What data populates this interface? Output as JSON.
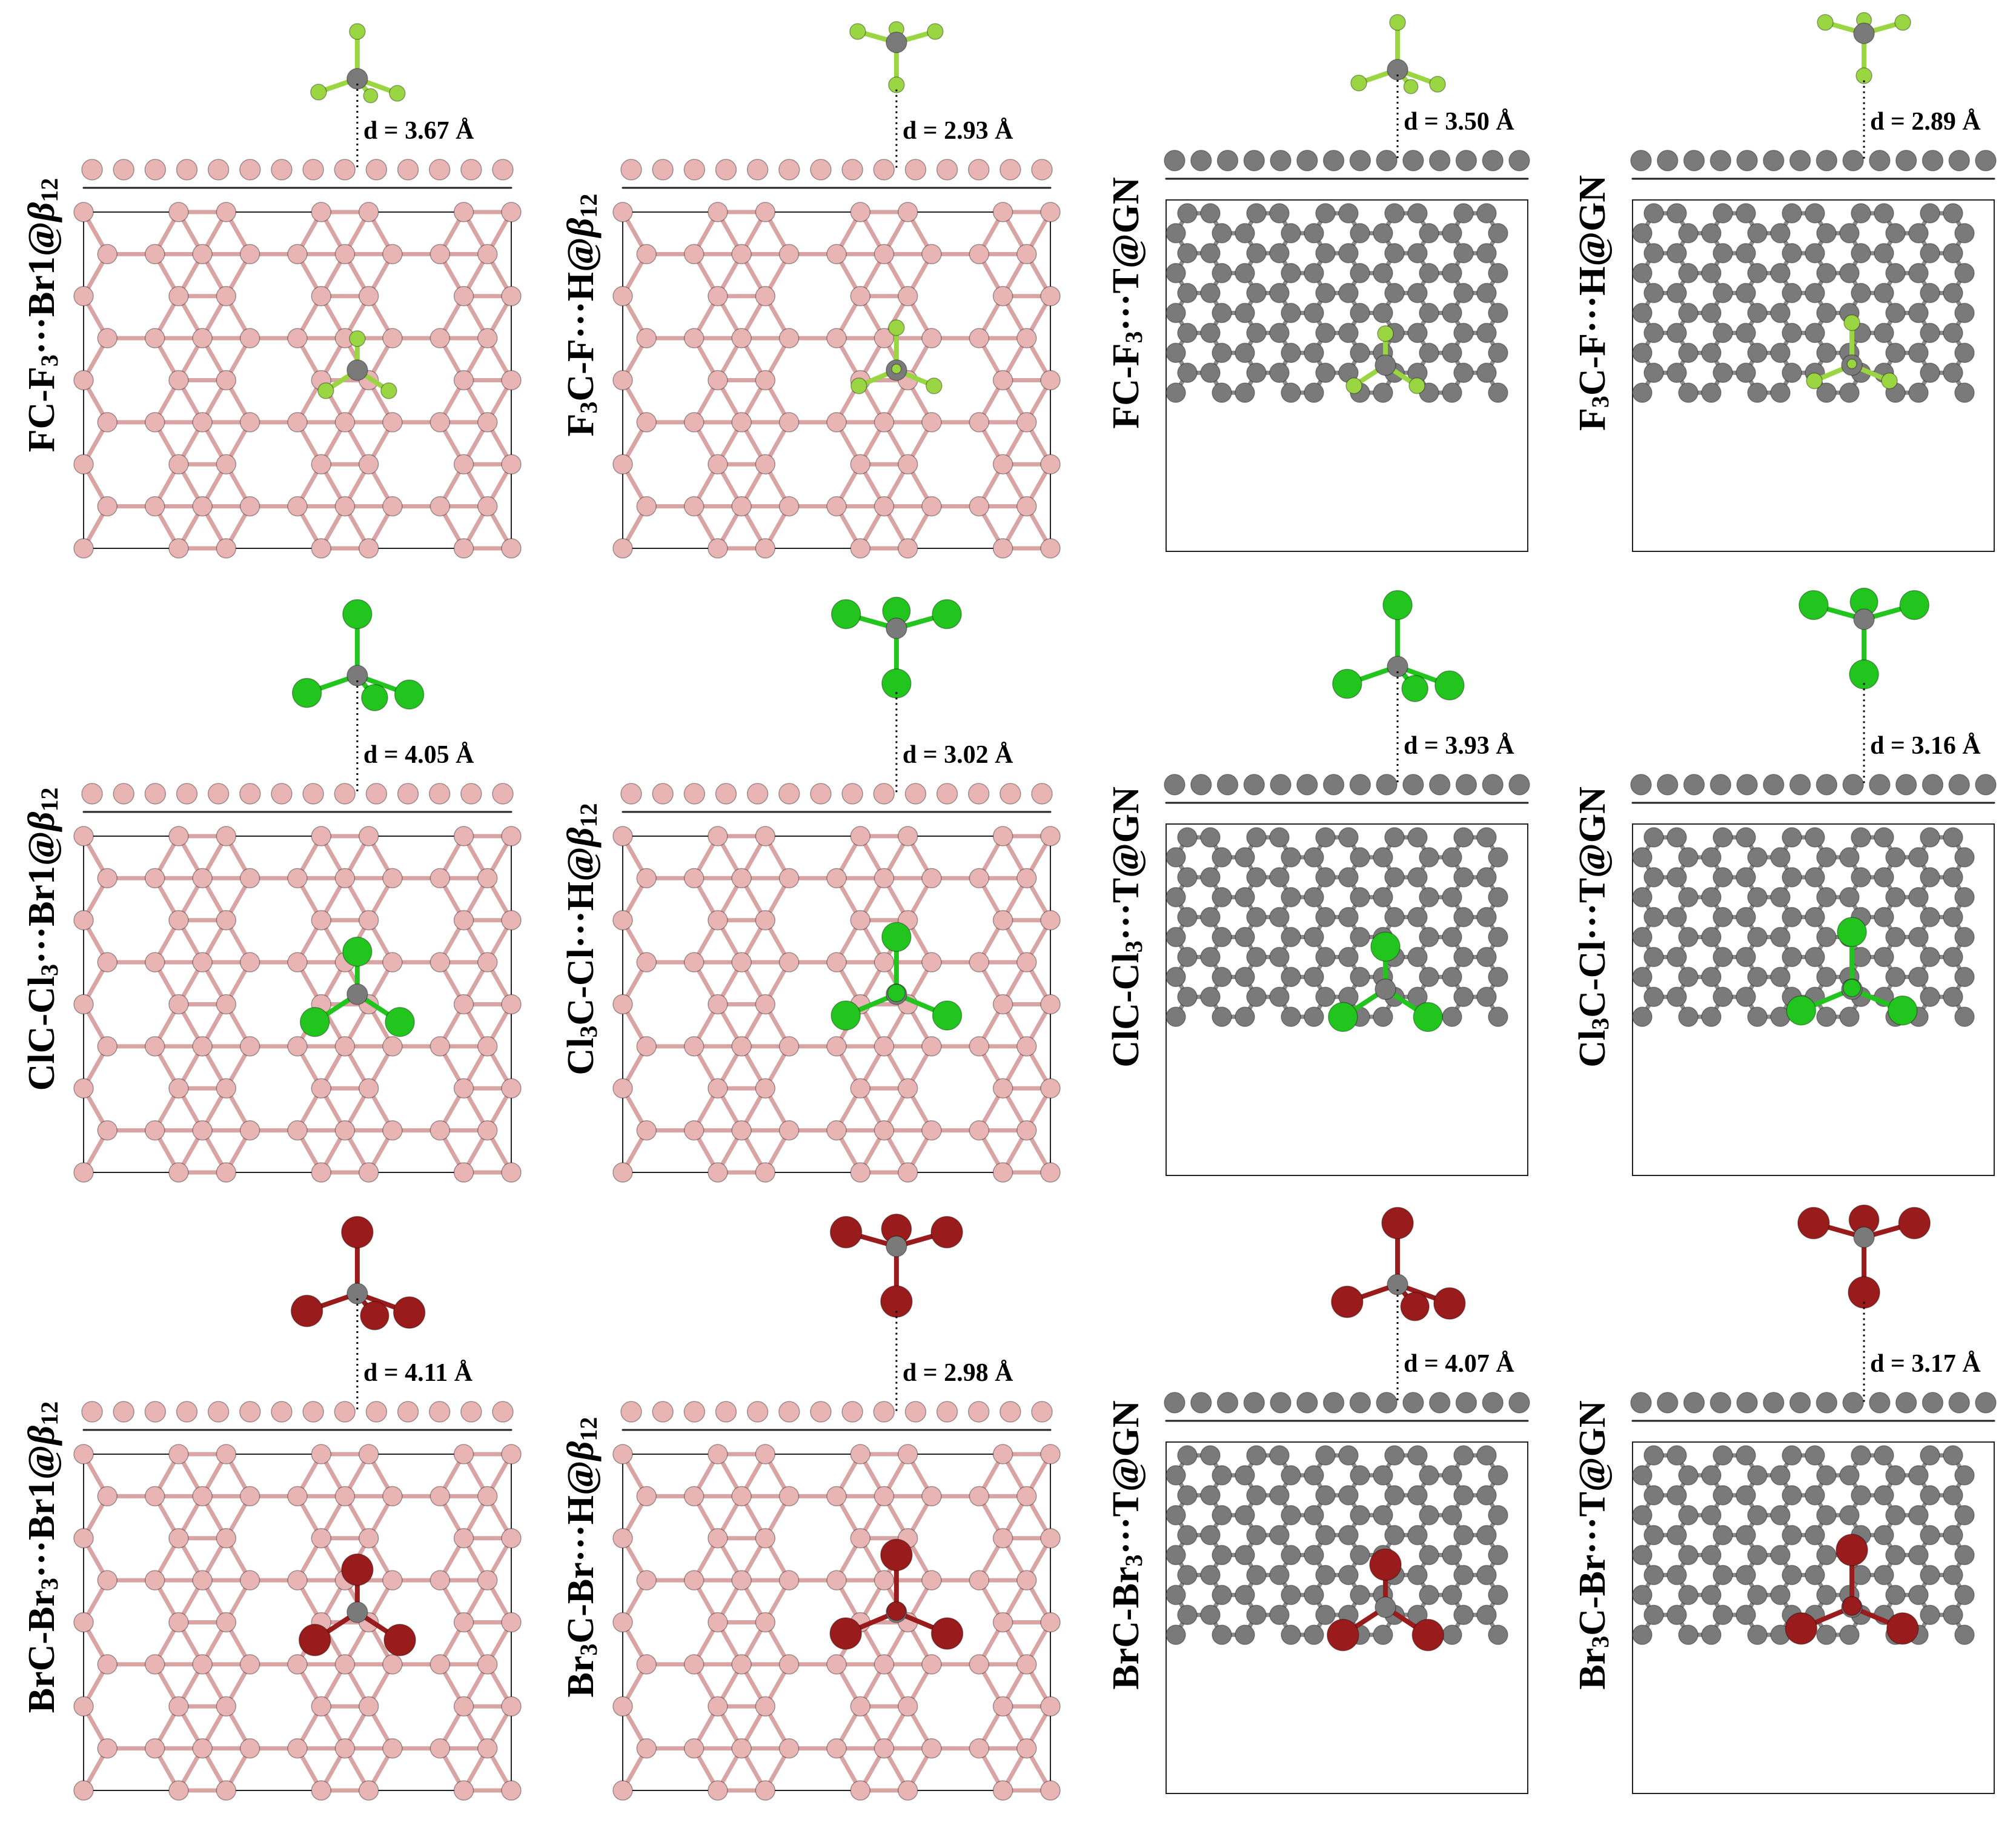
{
  "panels": [
    {
      "id": "p1",
      "row": 0,
      "col": 0,
      "substrate": "b12",
      "halogen": "F",
      "orient": "tripod",
      "label": [
        "FC-F",
        "3",
        "···Br1@",
        "β",
        "12"
      ],
      "distance": "d = 3.67 Å"
    },
    {
      "id": "p2",
      "row": 0,
      "col": 1,
      "substrate": "b12",
      "halogen": "F",
      "orient": "single",
      "label": [
        "F",
        "3",
        "C-F···H@",
        "β",
        "12"
      ],
      "distance": "d = 2.93 Å"
    },
    {
      "id": "p3",
      "row": 0,
      "col": 2,
      "substrate": "GN",
      "halogen": "F",
      "orient": "tripod",
      "label": [
        "FC-F",
        "3",
        "···T@GN",
        "",
        ""
      ],
      "distance": "d = 3.50 Å"
    },
    {
      "id": "p4",
      "row": 0,
      "col": 3,
      "substrate": "GN",
      "halogen": "F",
      "orient": "single",
      "label": [
        "F",
        "3",
        "C-F···H@GN",
        "",
        ""
      ],
      "distance": "d = 2.89 Å"
    },
    {
      "id": "p5",
      "row": 1,
      "col": 0,
      "substrate": "b12",
      "halogen": "Cl",
      "orient": "tripod",
      "label": [
        "ClC-Cl",
        "3",
        "···Br1@",
        "β",
        "12"
      ],
      "distance": "d = 4.05 Å"
    },
    {
      "id": "p6",
      "row": 1,
      "col": 1,
      "substrate": "b12",
      "halogen": "Cl",
      "orient": "single",
      "label": [
        "Cl",
        "3",
        "C-Cl···H@",
        "β",
        "12"
      ],
      "distance": "d = 3.02 Å"
    },
    {
      "id": "p7",
      "row": 1,
      "col": 2,
      "substrate": "GN",
      "halogen": "Cl",
      "orient": "tripod",
      "label": [
        "ClC-Cl",
        "3",
        "···T@GN",
        "",
        ""
      ],
      "distance": "d = 3.93 Å"
    },
    {
      "id": "p8",
      "row": 1,
      "col": 3,
      "substrate": "GN",
      "halogen": "Cl",
      "orient": "single",
      "label": [
        "Cl",
        "3",
        "C-Cl···T@GN",
        "",
        ""
      ],
      "distance": "d = 3.16 Å"
    },
    {
      "id": "p9",
      "row": 2,
      "col": 0,
      "substrate": "b12",
      "halogen": "Br",
      "orient": "tripod",
      "label": [
        "BrC-Br",
        "3",
        "···Br1@",
        "β",
        "12"
      ],
      "distance": "d = 4.11 Å"
    },
    {
      "id": "p10",
      "row": 2,
      "col": 1,
      "substrate": "b12",
      "halogen": "Br",
      "orient": "single",
      "label": [
        "Br",
        "3",
        "C-Br···H@",
        "β",
        "12"
      ],
      "distance": "d = 2.98 Å"
    },
    {
      "id": "p11",
      "row": 2,
      "col": 2,
      "substrate": "GN",
      "halogen": "Br",
      "orient": "tripod",
      "label": [
        "BrC-Br",
        "3",
        "···T@GN",
        "",
        ""
      ],
      "distance": "d = 4.07 Å"
    },
    {
      "id": "p12",
      "row": 2,
      "col": 3,
      "substrate": "GN",
      "halogen": "Br",
      "orient": "single",
      "label": [
        "Br",
        "3",
        "C-Br···T@GN",
        "",
        ""
      ],
      "distance": "d = 3.17 Å"
    }
  ],
  "colors": {
    "boron_atom": "#e8b4b4",
    "boron_bond": "#d9a4a4",
    "carbon_atom": "#7a7a7a",
    "carbon_bond": "#8a8a8a",
    "fluorine": "#9ad641",
    "chlorine": "#22c51e",
    "bromine": "#9a1b1b",
    "frame": "#222222"
  }
}
